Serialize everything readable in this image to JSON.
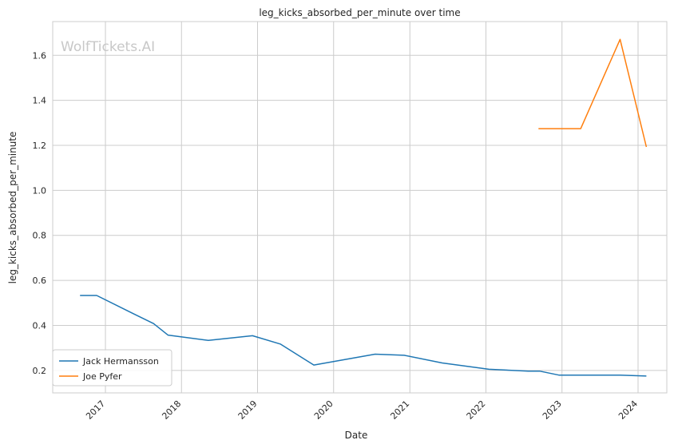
{
  "chart_data": {
    "type": "line",
    "title": "leg_kicks_absorbed_per_minute over time",
    "xlabel": "Date",
    "ylabel": "leg_kicks_absorbed_per_minute",
    "watermark": "WolfTickets.AI",
    "x_ticks": [
      "2017",
      "2018",
      "2019",
      "2020",
      "2021",
      "2022",
      "2023",
      "2024"
    ],
    "y_ticks": [
      "0.2",
      "0.4",
      "0.6",
      "0.8",
      "1.0",
      "1.2",
      "1.4",
      "1.6"
    ],
    "xlim": [
      "2016-04-23",
      "2024-05-18"
    ],
    "ylim": [
      0.1,
      1.75
    ],
    "grid": true,
    "legend_position": "lower-left",
    "series": [
      {
        "name": "Jack Hermansson",
        "color": "#1f77b4",
        "points": [
          {
            "x": "2016-09-01",
            "y": 0.533
          },
          {
            "x": "2016-11-20",
            "y": 0.533
          },
          {
            "x": "2017-05-15",
            "y": 0.452
          },
          {
            "x": "2017-08-20",
            "y": 0.408
          },
          {
            "x": "2017-10-28",
            "y": 0.357
          },
          {
            "x": "2018-05-10",
            "y": 0.333
          },
          {
            "x": "2018-12-08",
            "y": 0.354
          },
          {
            "x": "2019-04-20",
            "y": 0.317
          },
          {
            "x": "2019-09-28",
            "y": 0.224
          },
          {
            "x": "2020-07-18",
            "y": 0.272
          },
          {
            "x": "2020-12-05",
            "y": 0.267
          },
          {
            "x": "2021-06-05",
            "y": 0.233
          },
          {
            "x": "2022-01-15",
            "y": 0.205
          },
          {
            "x": "2022-07-23",
            "y": 0.197
          },
          {
            "x": "2022-09-15",
            "y": 0.197
          },
          {
            "x": "2022-12-17",
            "y": 0.179
          },
          {
            "x": "2023-10-07",
            "y": 0.179
          },
          {
            "x": "2024-02-10",
            "y": 0.175
          }
        ]
      },
      {
        "name": "Joe Pyfer",
        "color": "#ff7f0e",
        "points": [
          {
            "x": "2022-09-10",
            "y": 1.274
          },
          {
            "x": "2023-04-01",
            "y": 1.274
          },
          {
            "x": "2023-10-07",
            "y": 1.671
          },
          {
            "x": "2024-02-10",
            "y": 1.193
          }
        ]
      }
    ]
  }
}
